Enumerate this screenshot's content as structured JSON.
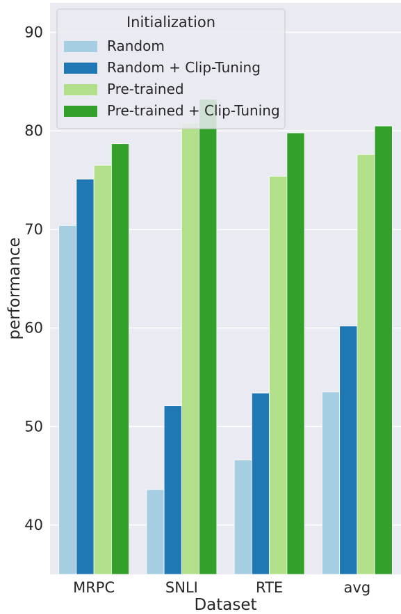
{
  "chart_data": {
    "type": "bar",
    "title": "",
    "xlabel": "Dataset",
    "ylabel": "performance",
    "categories": [
      "MRPC",
      "SNLI",
      "RTE",
      "avg"
    ],
    "ylim": [
      35,
      93
    ],
    "yticks": [
      40,
      50,
      60,
      70,
      80,
      90
    ],
    "grid": true,
    "legend_title": "Initialization",
    "legend_position": "top-left",
    "series": [
      {
        "name": "Random",
        "color": "#a6cee3",
        "values": [
          70.4,
          43.6,
          46.6,
          53.5
        ]
      },
      {
        "name": "Random + Clip-Tuning",
        "color": "#1f78b4",
        "values": [
          75.1,
          52.1,
          53.4,
          60.2
        ]
      },
      {
        "name": "Pre-trained",
        "color": "#b2df8a",
        "values": [
          76.5,
          80.8,
          75.4,
          77.6
        ]
      },
      {
        "name": "Pre-trained + Clip-Tuning",
        "color": "#33a02c",
        "values": [
          78.7,
          83.2,
          79.8,
          80.5
        ]
      }
    ],
    "background_color": "#eaeaf2",
    "grid_color": "#ffffff"
  }
}
